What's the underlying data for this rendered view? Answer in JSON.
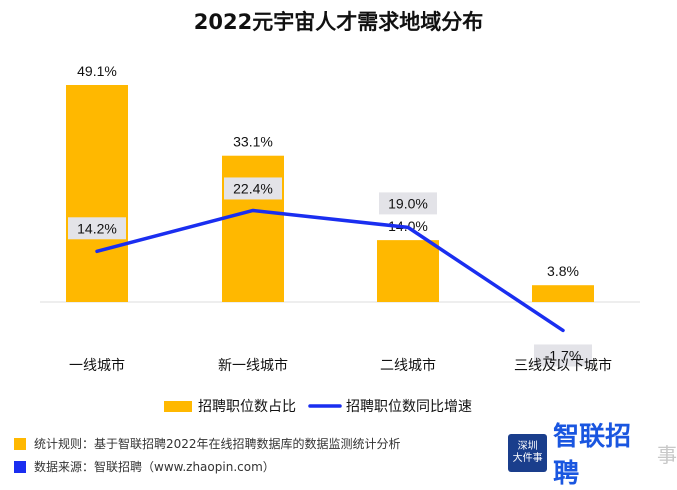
{
  "chart_data": {
    "type": "bar",
    "title": "2022元宇宙人才需求地域分布",
    "categories": [
      "一线城市",
      "新一线城市",
      "二线城市",
      "三线及以下城市"
    ],
    "series": [
      {
        "name": "招聘职位数占比",
        "type": "bar",
        "color": "#FFB800",
        "values": [
          49.1,
          33.1,
          14.0,
          3.8
        ],
        "labels": [
          "49.1%",
          "33.1%",
          "14.0%",
          "3.8%"
        ]
      },
      {
        "name": "招聘职位数同比增速",
        "type": "line",
        "color": "#1A2EF0",
        "values": [
          14.2,
          22.4,
          19.0,
          -1.7
        ],
        "labels": [
          "14.2%",
          "22.4%",
          "19.0%",
          "-1.7%"
        ]
      }
    ],
    "legend_position": "bottom",
    "grid": false
  },
  "footnotes": {
    "rule": "统计规则：基于智联招聘2022年在线招聘数据库的数据监测统计分析",
    "rule_color": "#FFB800",
    "source": "数据来源：智联招聘（www.zhaopin.com）",
    "source_color": "#1A2EF0"
  },
  "logo": {
    "badge_line1": "深圳",
    "badge_line2": "大件事",
    "brand": "智联招聘",
    "watermark": "事"
  }
}
